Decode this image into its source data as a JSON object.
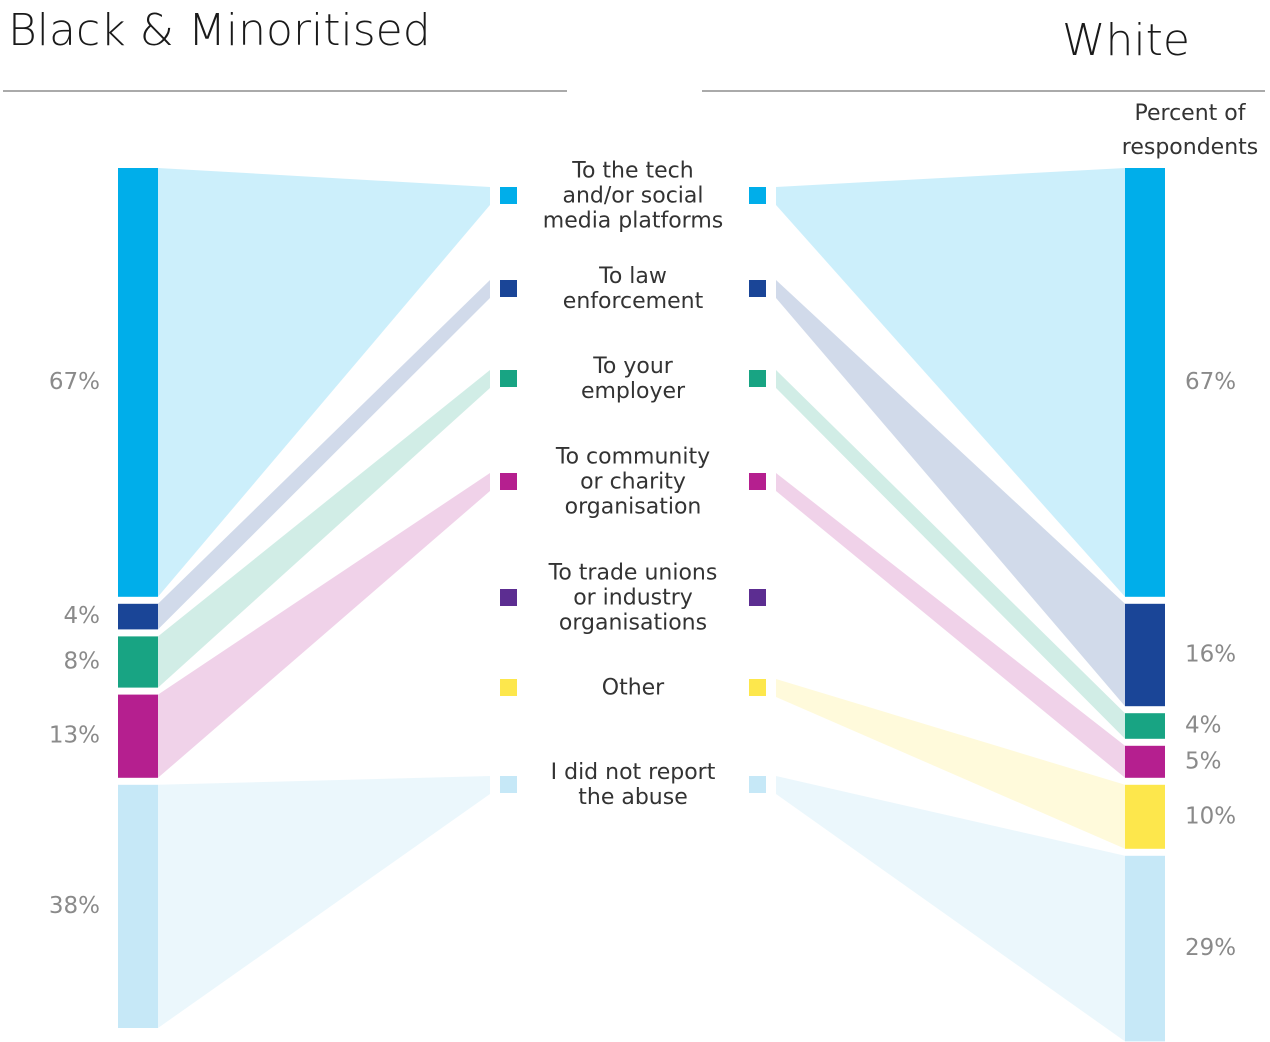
{
  "chart_data": {
    "type": "sankey",
    "axis_label": "Percent of\nrespondents",
    "categories": [
      "To the tech\nand/or social\nmedia platforms",
      "To law\nenforcement",
      "To your\nemployer",
      "To community\nor charity\norganisation",
      "To trade unions\nor industry\norganisations",
      "Other",
      "I did not report\nthe abuse"
    ],
    "colors": [
      "#00aeea",
      "#1a4597",
      "#18a483",
      "#b51f8f",
      "#5c2d91",
      "#fde74c",
      "#c6e8f7"
    ],
    "series": [
      {
        "name": "Black & Minoritised",
        "values": [
          67,
          4,
          8,
          13,
          null,
          null,
          38
        ],
        "value_labels": [
          "67%",
          "4%",
          "8%",
          "13%",
          null,
          null,
          "38%"
        ]
      },
      {
        "name": "White",
        "values": [
          67,
          16,
          4,
          5,
          null,
          10,
          29
        ],
        "value_labels": [
          "67%",
          "16%",
          "4%",
          "5%",
          null,
          "10%",
          "29%"
        ]
      }
    ]
  }
}
